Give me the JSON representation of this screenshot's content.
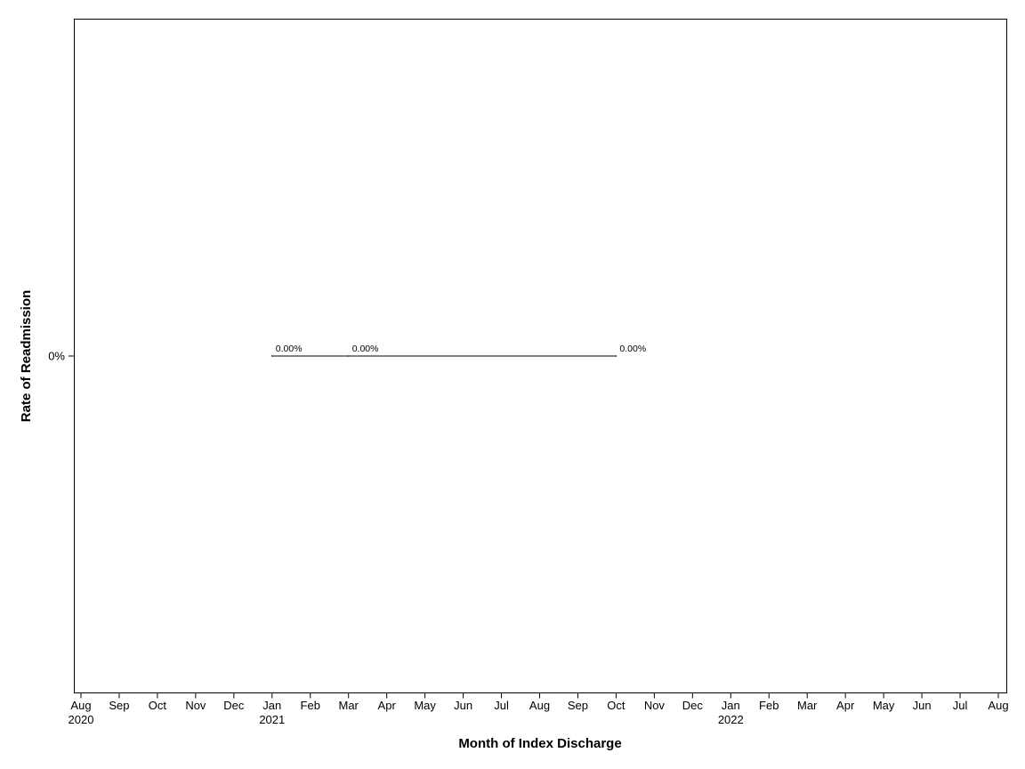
{
  "chart_data": {
    "type": "line",
    "title": "",
    "xlabel": "Month of Index Discharge",
    "ylabel": "Rate of Readmission",
    "x_tick_labels": [
      {
        "month": "Aug",
        "year": "2020"
      },
      {
        "month": "Sep",
        "year": ""
      },
      {
        "month": "Oct",
        "year": ""
      },
      {
        "month": "Nov",
        "year": ""
      },
      {
        "month": "Dec",
        "year": ""
      },
      {
        "month": "Jan",
        "year": "2021"
      },
      {
        "month": "Feb",
        "year": ""
      },
      {
        "month": "Mar",
        "year": ""
      },
      {
        "month": "Apr",
        "year": ""
      },
      {
        "month": "May",
        "year": ""
      },
      {
        "month": "Jun",
        "year": ""
      },
      {
        "month": "Jul",
        "year": ""
      },
      {
        "month": "Aug",
        "year": ""
      },
      {
        "month": "Sep",
        "year": ""
      },
      {
        "month": "Oct",
        "year": ""
      },
      {
        "month": "Nov",
        "year": ""
      },
      {
        "month": "Dec",
        "year": ""
      },
      {
        "month": "Jan",
        "year": "2022"
      },
      {
        "month": "Feb",
        "year": ""
      },
      {
        "month": "Mar",
        "year": ""
      },
      {
        "month": "Apr",
        "year": ""
      },
      {
        "month": "May",
        "year": ""
      },
      {
        "month": "Jun",
        "year": ""
      },
      {
        "month": "Jul",
        "year": ""
      },
      {
        "month": "Aug",
        "year": ""
      }
    ],
    "xlim": [
      "2020-08",
      "2022-08"
    ],
    "y_ticks": [
      {
        "value": 0,
        "label": "0%"
      }
    ],
    "series": [
      {
        "points": [
          {
            "x": "2021-01",
            "y": 0,
            "label": "0.00%"
          },
          {
            "x": "2021-03",
            "y": 0,
            "label": "0.00%"
          },
          {
            "x": "2021-10",
            "y": 0,
            "label": "0.00%"
          }
        ],
        "color": "#000000"
      }
    ],
    "grid": false,
    "legend": "none"
  }
}
